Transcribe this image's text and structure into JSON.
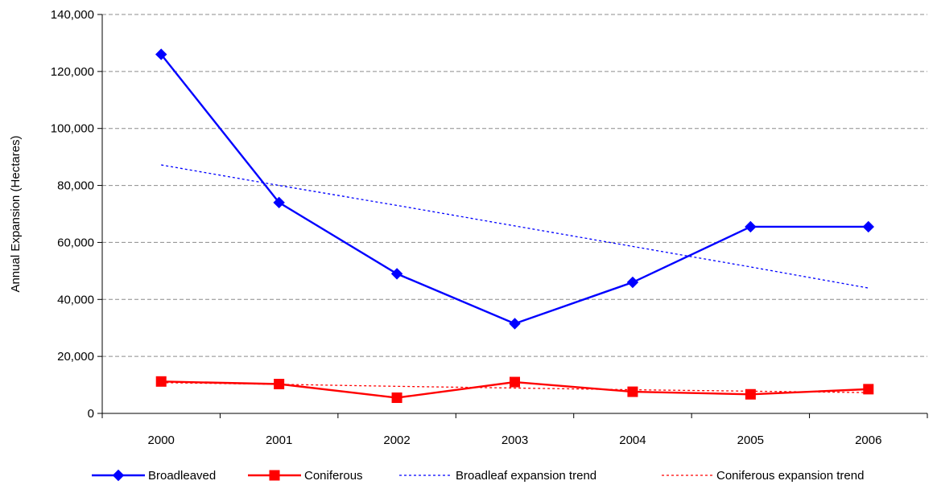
{
  "chart_data": {
    "type": "line",
    "title": "",
    "xlabel": "",
    "ylabel": "Annual Expansion (Hectares)",
    "categories": [
      "2000",
      "2001",
      "2002",
      "2003",
      "2004",
      "2005",
      "2006"
    ],
    "ylim": [
      0,
      140000
    ],
    "yticks": [
      0,
      20000,
      40000,
      60000,
      80000,
      100000,
      120000,
      140000
    ],
    "ytick_labels": [
      "0",
      "20,000",
      "40,000",
      "60,000",
      "80,000",
      "100,000",
      "120,000",
      "140,000"
    ],
    "grid": true,
    "legend_position": "bottom",
    "series": [
      {
        "name": "Broadleaved",
        "values": [
          126000,
          74000,
          49000,
          31500,
          46000,
          65500,
          65500
        ],
        "color": "#0000ff",
        "marker": "diamond",
        "style": "solid"
      },
      {
        "name": "Coniferous",
        "values": [
          11200,
          10300,
          5500,
          11000,
          7600,
          6700,
          8500
        ],
        "color": "#ff0000",
        "marker": "square",
        "style": "solid"
      },
      {
        "name": "Broadleaf expansion trend",
        "values": [
          87200,
          80000,
          73000,
          65800,
          58600,
          51400,
          44000
        ],
        "color": "#0000ff",
        "marker": "none",
        "style": "dashed"
      },
      {
        "name": "Coniferous expansion trend",
        "values": [
          10800,
          10200,
          9500,
          8900,
          8300,
          7800,
          7300
        ],
        "color": "#ff0000",
        "marker": "none",
        "style": "dashed"
      }
    ]
  }
}
